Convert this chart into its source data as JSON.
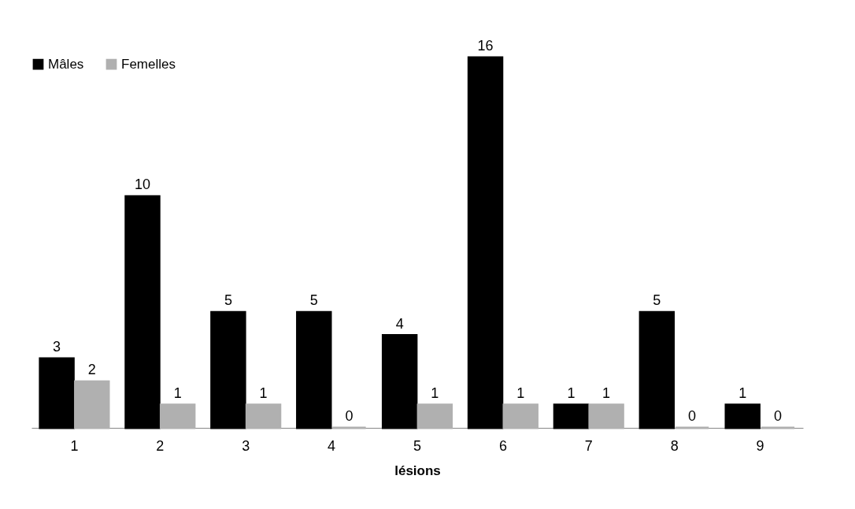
{
  "chart_data": {
    "type": "bar",
    "xlabel": "lésions",
    "categories": [
      "1",
      "2",
      "3",
      "4",
      "5",
      "6",
      "7",
      "8",
      "9"
    ],
    "series": [
      {
        "name": "Mâles",
        "color": "#000000",
        "values": [
          3,
          10,
          5,
          5,
          4,
          16,
          1,
          5,
          1
        ]
      },
      {
        "name": "Femelles",
        "color": "#b0b0b0",
        "values": [
          2,
          1,
          1,
          0,
          1,
          1,
          1,
          0,
          0
        ]
      }
    ],
    "data_labels": true,
    "legend": "top left",
    "grid": false
  }
}
